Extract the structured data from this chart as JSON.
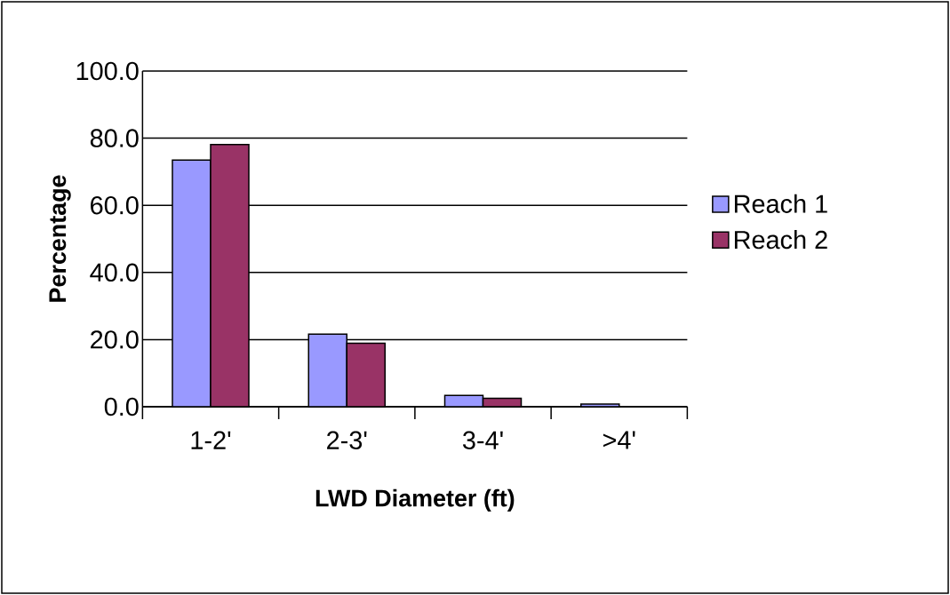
{
  "chart_data": {
    "type": "bar",
    "xlabel": "LWD Diameter (ft)",
    "ylabel": "Percentage",
    "categories": [
      "1-2'",
      "2-3'",
      "3-4'",
      ">4'"
    ],
    "series": [
      {
        "name": "Reach 1",
        "color": "#9999ff",
        "values": [
          73.5,
          21.6,
          3.4,
          0.8
        ]
      },
      {
        "name": "Reach 2",
        "color": "#993366",
        "values": [
          78.1,
          18.9,
          2.5,
          null
        ]
      }
    ],
    "ylim": [
      0,
      100
    ],
    "yticks": [
      {
        "value": 0,
        "label": "0.0"
      },
      {
        "value": 20,
        "label": "20.0"
      },
      {
        "value": 40,
        "label": "40.0"
      },
      {
        "value": 60,
        "label": "60.0"
      },
      {
        "value": 80,
        "label": "80.0"
      },
      {
        "value": 100,
        "label": "100.0"
      }
    ],
    "grid": "y",
    "legend": "right"
  }
}
